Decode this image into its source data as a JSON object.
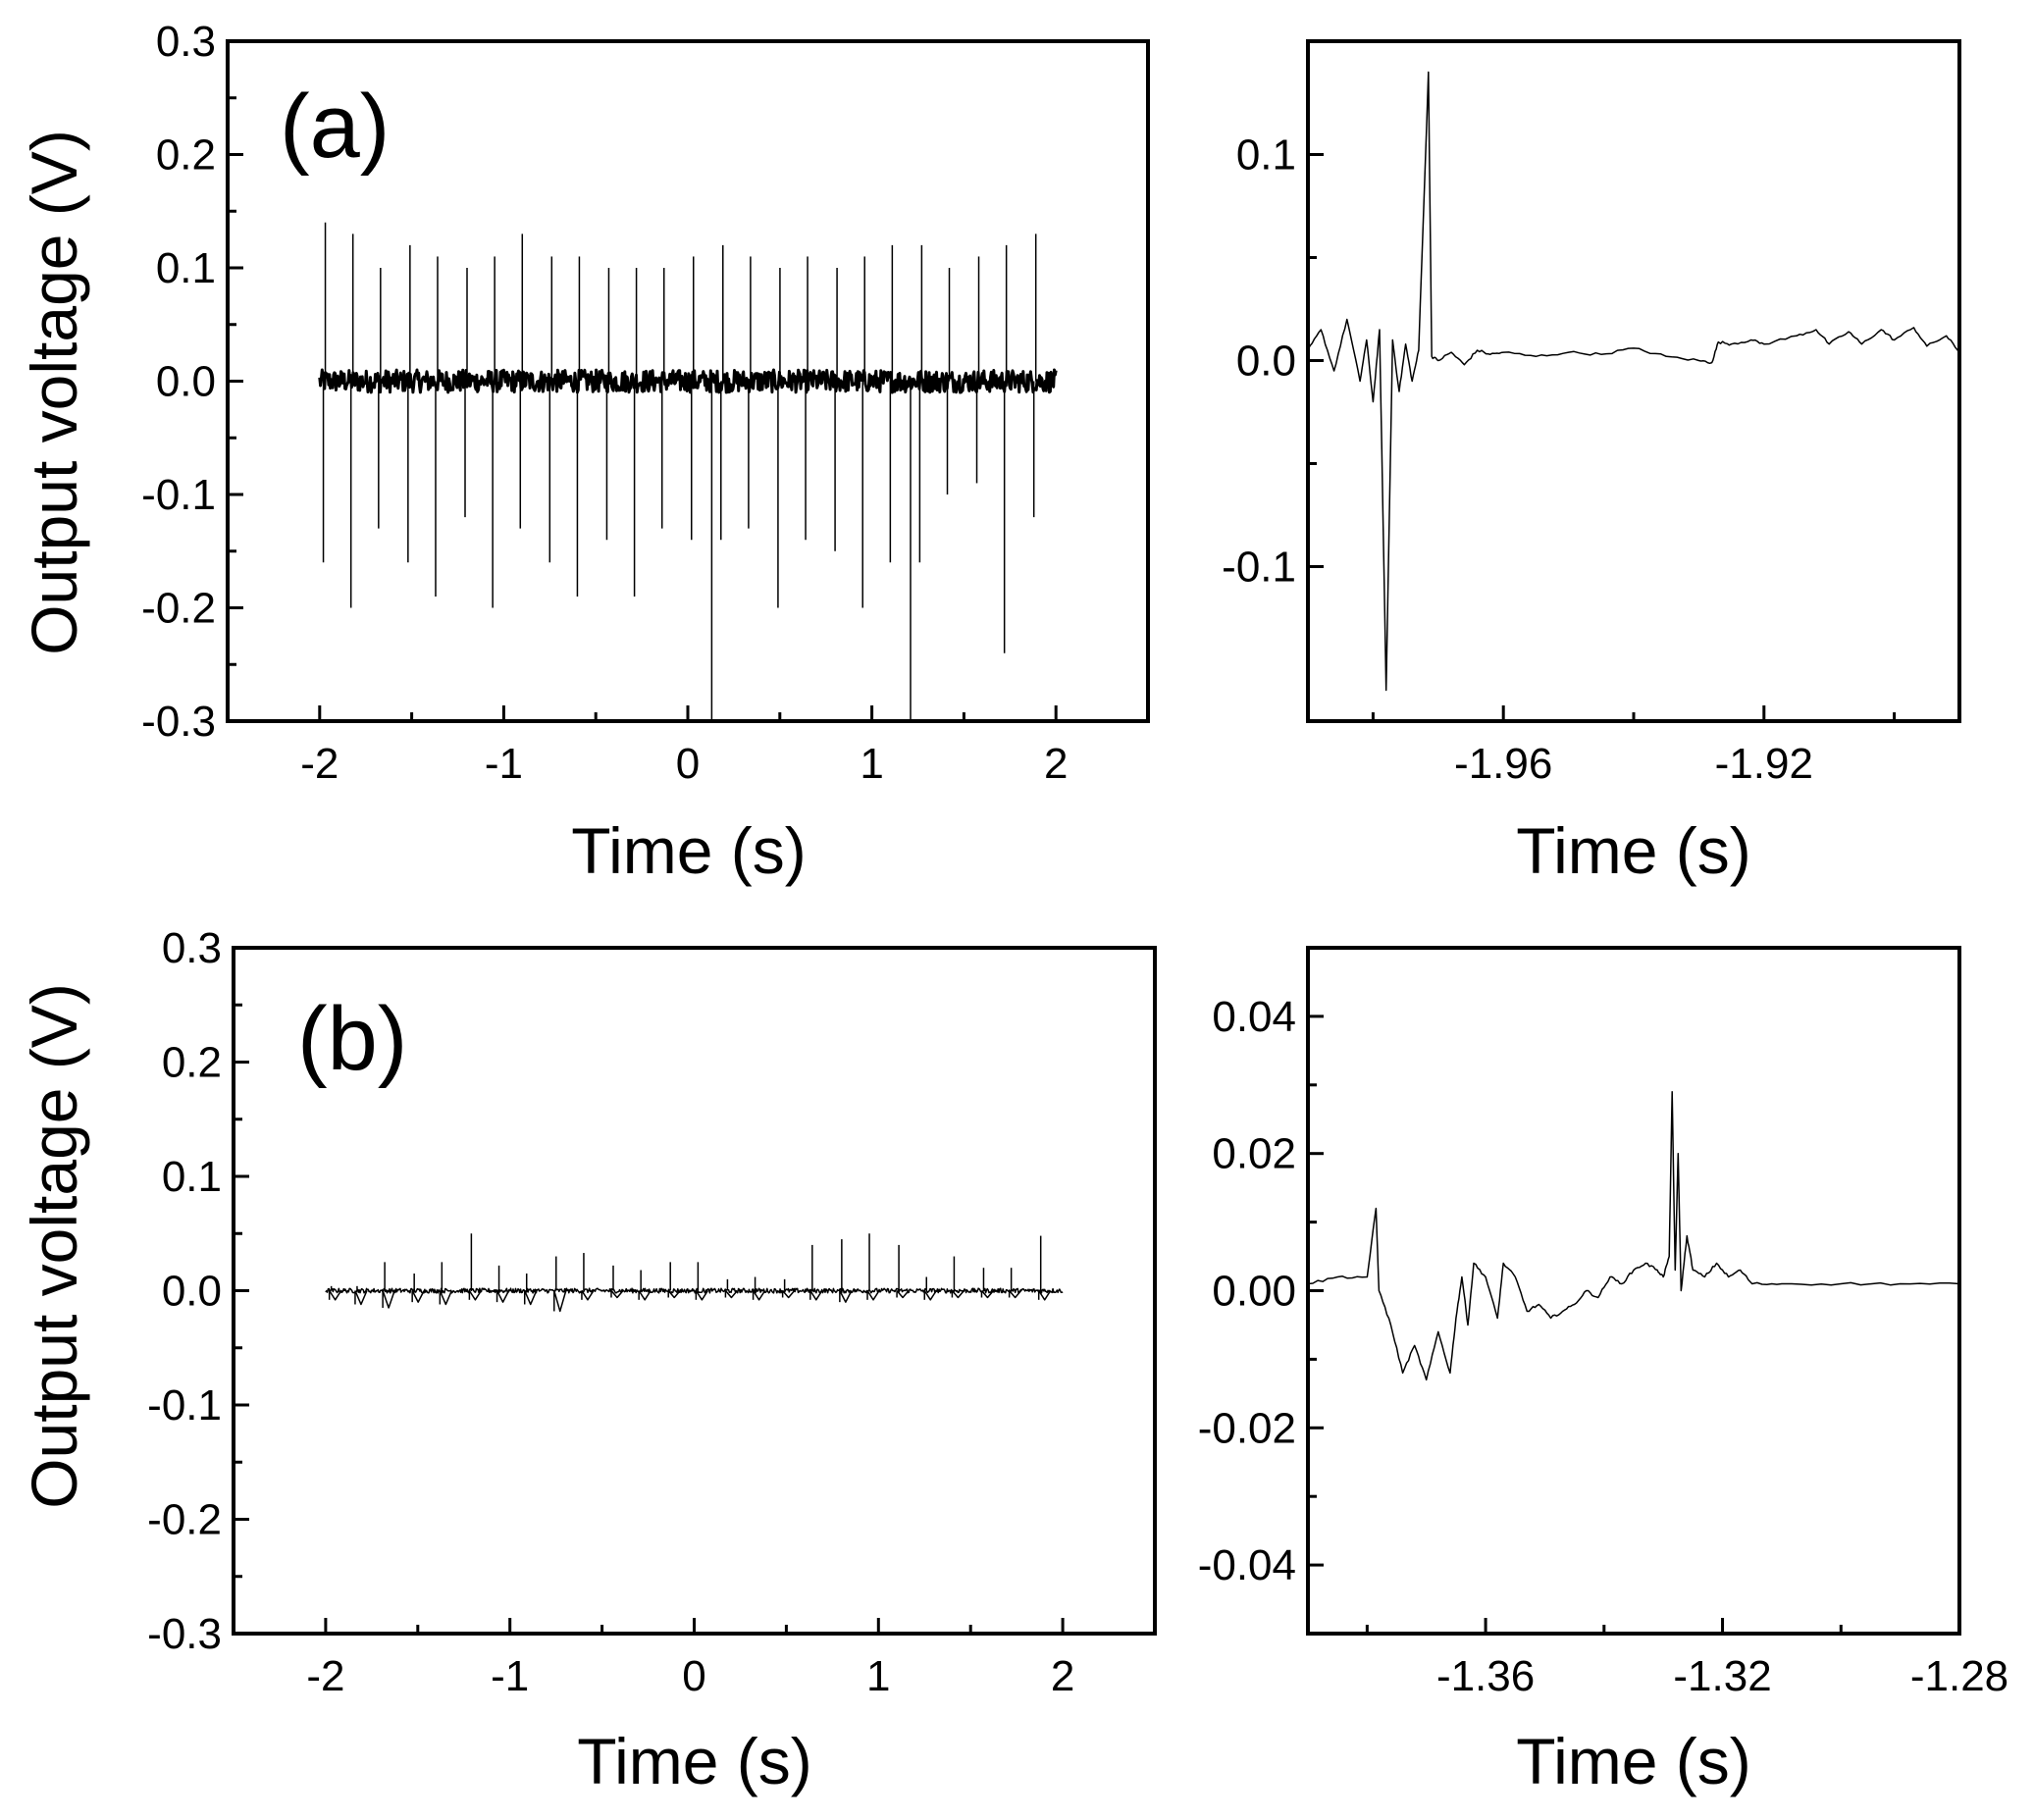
{
  "figure": {
    "ylabel": "Output voltage (V)",
    "xlabel": "Time (s)"
  },
  "chart_data": [
    {
      "id": "a-full",
      "type": "line",
      "panel_label": "(a)",
      "title": "",
      "xlabel": "Time (s)",
      "ylabel": "Output voltage (V)",
      "xlim": [
        -2.5,
        2.5
      ],
      "ylim": [
        -0.3,
        0.3
      ],
      "xticks": [
        -2,
        -1,
        0,
        1,
        2
      ],
      "xtick_labels": [
        "-2",
        "-1",
        "0",
        "1",
        "2"
      ],
      "yticks": [
        -0.3,
        -0.2,
        -0.1,
        0.0,
        0.1,
        0.2,
        0.3
      ],
      "ytick_labels": [
        "-0.3",
        "-0.2",
        "-0.1",
        "0.0",
        "0.1",
        "0.2",
        "0.3"
      ],
      "baseline_noise": 0.01,
      "trace_x_range": [
        -2.0,
        2.0
      ],
      "spikes": {
        "t": [
          -1.98,
          -1.83,
          -1.68,
          -1.52,
          -1.37,
          -1.21,
          -1.06,
          -0.91,
          -0.75,
          -0.6,
          -0.44,
          -0.29,
          -0.14,
          0.02,
          0.13,
          0.18,
          0.33,
          0.49,
          0.64,
          0.8,
          0.95,
          1.1,
          1.21,
          1.26,
          1.41,
          1.57,
          1.72,
          1.88
        ],
        "max": [
          0.14,
          0.13,
          0.1,
          0.12,
          0.11,
          0.1,
          0.11,
          0.13,
          0.11,
          0.11,
          0.1,
          0.1,
          0.1,
          0.11,
          0.0,
          0.12,
          0.11,
          0.1,
          0.11,
          0.1,
          0.11,
          0.12,
          0.0,
          0.12,
          0.1,
          0.11,
          0.12,
          0.13
        ],
        "min": [
          -0.16,
          -0.2,
          -0.13,
          -0.16,
          -0.19,
          -0.12,
          -0.2,
          -0.13,
          -0.16,
          -0.19,
          -0.14,
          -0.19,
          -0.13,
          -0.14,
          -0.3,
          -0.14,
          -0.13,
          -0.2,
          -0.14,
          -0.15,
          -0.2,
          -0.16,
          -0.3,
          -0.16,
          -0.1,
          -0.09,
          -0.24,
          -0.12
        ]
      }
    },
    {
      "id": "a-zoom",
      "type": "line",
      "title": "",
      "xlabel": "Time (s)",
      "ylabel": "",
      "xlim": [
        -1.99,
        -1.89
      ],
      "ylim": [
        -0.175,
        0.155
      ],
      "xticks": [
        -1.96,
        -1.92
      ],
      "xtick_labels": [
        "-1.96",
        "-1.92"
      ],
      "yticks": [
        -0.1,
        0.0,
        0.1
      ],
      "ytick_labels": [
        "-0.1",
        "0.0",
        "0.1"
      ],
      "x": [
        -1.99,
        -1.988,
        -1.986,
        -1.984,
        -1.982,
        -1.981,
        -1.98,
        -1.979,
        -1.978,
        -1.977,
        -1.976,
        -1.975,
        -1.974,
        -1.973,
        -1.9715,
        -1.971,
        -1.97,
        -1.968,
        -1.966,
        -1.964,
        -1.962,
        -1.96,
        -1.955,
        -1.95,
        -1.945,
        -1.94,
        -1.935,
        -1.93,
        -1.928,
        -1.927,
        -1.925,
        -1.922,
        -1.92,
        -1.915,
        -1.912,
        -1.91,
        -1.907,
        -1.905,
        -1.902,
        -1.9,
        -1.897,
        -1.895,
        -1.892,
        -1.89
      ],
      "y": [
        0.005,
        0.015,
        -0.005,
        0.02,
        -0.01,
        0.01,
        -0.02,
        0.015,
        -0.16,
        0.01,
        -0.015,
        0.008,
        -0.01,
        0.005,
        0.14,
        0.002,
        0.0,
        0.004,
        -0.002,
        0.005,
        0.003,
        0.004,
        0.002,
        0.004,
        0.003,
        0.006,
        0.002,
        0.0,
        -0.001,
        0.009,
        0.008,
        0.01,
        0.008,
        0.012,
        0.015,
        0.008,
        0.014,
        0.008,
        0.015,
        0.01,
        0.016,
        0.007,
        0.012,
        0.004
      ]
    },
    {
      "id": "b-full",
      "type": "line",
      "panel_label": "(b)",
      "title": "",
      "xlabel": "Time (s)",
      "ylabel": "Output voltage (V)",
      "xlim": [
        -2.5,
        2.5
      ],
      "ylim": [
        -0.3,
        0.3
      ],
      "xticks": [
        -2,
        -1,
        0,
        1,
        2
      ],
      "xtick_labels": [
        "-2",
        "-1",
        "0",
        "1",
        "2"
      ],
      "yticks": [
        -0.3,
        -0.2,
        -0.1,
        0.0,
        0.1,
        0.2,
        0.3
      ],
      "ytick_labels": [
        "-0.3",
        "-0.2",
        "-0.1",
        "0.0",
        "0.1",
        "0.2",
        "0.3"
      ],
      "trace_x_range": [
        -2.0,
        2.0
      ],
      "spikes": {
        "t": [
          -1.98,
          -1.84,
          -1.69,
          -1.53,
          -1.38,
          -1.22,
          -1.07,
          -0.92,
          -0.76,
          -0.61,
          -0.45,
          -0.3,
          -0.14,
          0.01,
          0.17,
          0.32,
          0.48,
          0.63,
          0.79,
          0.94,
          1.1,
          1.25,
          1.4,
          1.56,
          1.71,
          1.87
        ],
        "max": [
          0.004,
          0.004,
          0.025,
          0.015,
          0.025,
          0.05,
          0.022,
          0.015,
          0.03,
          0.033,
          0.022,
          0.018,
          0.025,
          0.025,
          0.01,
          0.012,
          0.01,
          0.04,
          0.045,
          0.05,
          0.04,
          0.012,
          0.03,
          0.02,
          0.02,
          0.048
        ],
        "min": [
          -0.008,
          -0.012,
          -0.015,
          -0.01,
          -0.012,
          -0.008,
          -0.01,
          -0.012,
          -0.018,
          -0.008,
          -0.006,
          -0.008,
          -0.006,
          -0.008,
          -0.006,
          -0.008,
          -0.006,
          -0.008,
          -0.01,
          -0.008,
          -0.006,
          -0.008,
          -0.006,
          -0.006,
          -0.006,
          -0.008
        ]
      }
    },
    {
      "id": "b-zoom",
      "type": "line",
      "title": "",
      "xlabel": "Time (s)",
      "ylabel": "",
      "xlim": [
        -1.39,
        -1.28
      ],
      "ylim": [
        -0.05,
        0.05
      ],
      "xticks": [
        -1.36,
        -1.32,
        -1.28
      ],
      "xtick_labels": [
        "-1.36",
        "-1.32",
        "-1.28"
      ],
      "yticks": [
        -0.04,
        -0.02,
        0.0,
        0.02,
        0.04
      ],
      "ytick_labels": [
        "-0.04",
        "-0.02",
        "0.00",
        "0.02",
        "0.04"
      ],
      "x": [
        -1.39,
        -1.385,
        -1.38,
        -1.3785,
        -1.378,
        -1.376,
        -1.374,
        -1.372,
        -1.37,
        -1.368,
        -1.366,
        -1.365,
        -1.364,
        -1.363,
        -1.362,
        -1.36,
        -1.358,
        -1.357,
        -1.355,
        -1.353,
        -1.351,
        -1.349,
        -1.347,
        -1.345,
        -1.343,
        -1.341,
        -1.339,
        -1.337,
        -1.335,
        -1.333,
        -1.331,
        -1.33,
        -1.329,
        -1.3285,
        -1.328,
        -1.3275,
        -1.327,
        -1.326,
        -1.325,
        -1.323,
        -1.321,
        -1.319,
        -1.317,
        -1.315,
        -1.31,
        -1.3,
        -1.29,
        -1.28
      ],
      "y": [
        0.001,
        0.002,
        0.002,
        0.012,
        0.0,
        -0.005,
        -0.012,
        -0.008,
        -0.013,
        -0.006,
        -0.012,
        -0.004,
        0.002,
        -0.005,
        0.004,
        0.002,
        -0.004,
        0.004,
        0.002,
        -0.003,
        -0.002,
        -0.004,
        -0.003,
        -0.002,
        0.0,
        -0.001,
        0.002,
        0.001,
        0.003,
        0.004,
        0.003,
        0.002,
        0.005,
        0.029,
        0.003,
        0.02,
        0.0,
        0.008,
        0.003,
        0.002,
        0.004,
        0.002,
        0.003,
        0.001,
        0.001,
        0.001,
        0.001,
        0.001
      ]
    }
  ]
}
